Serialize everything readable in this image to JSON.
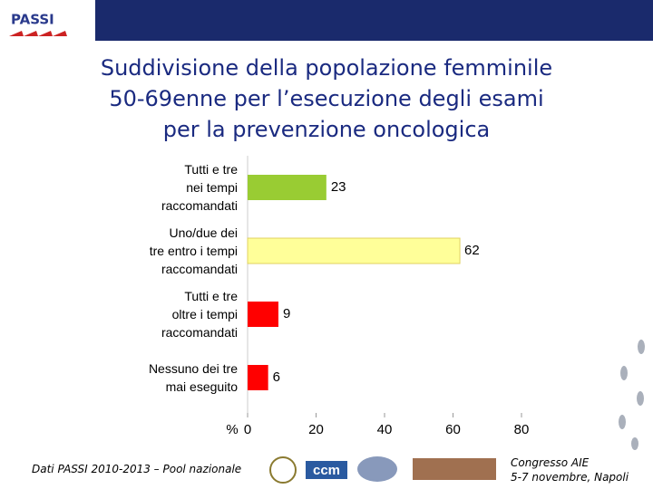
{
  "logo": "PASSI",
  "chart_data": {
    "type": "bar",
    "orientation": "horizontal",
    "title": "Suddivisione della popolazione femminile\n50-69enne per l’esecuzione degli esami\nper la prevenzione oncologica",
    "x_label": "%",
    "categories": [
      "Tutti e tre\nnei tempi\nraccomandati",
      "Uno/due dei\ntre entro i tempi\nraccomandati",
      "Tutti e tre\noltre i tempi\nraccomandati",
      "Nessuno dei tre\nmai eseguito"
    ],
    "values": [
      23,
      62,
      9,
      6
    ],
    "colors": [
      "#99cc33",
      "#ffff99",
      "#ff0000",
      "#ff0000"
    ],
    "xlim": [
      0,
      80
    ],
    "xticks": [
      0,
      20,
      40,
      60,
      80
    ]
  },
  "footer": {
    "source": "Dati PASSI 2010-2013 – Pool nazionale",
    "logo_ccm": "ccm",
    "event": "Congresso AIE\n5-7 novembre, Napoli"
  }
}
